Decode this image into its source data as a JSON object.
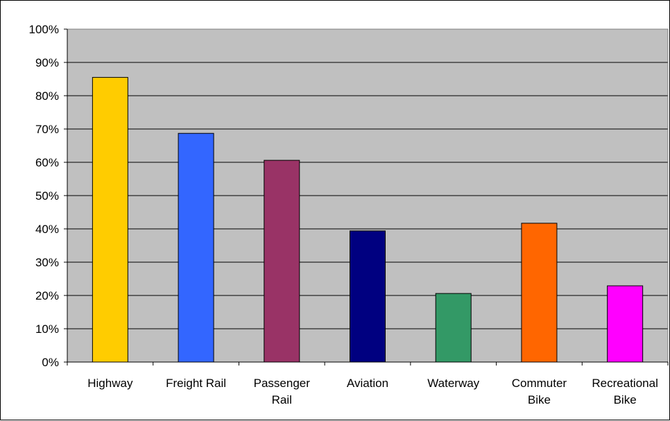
{
  "chart_data": {
    "type": "bar",
    "title": "",
    "xlabel": "",
    "ylabel": "",
    "categories": [
      "Highway",
      "Freight Rail",
      "Passenger Rail",
      "Aviation",
      "Waterway",
      "Commuter Bike",
      "Recreational Bike"
    ],
    "category_lines": [
      [
        "Highway"
      ],
      [
        "Freight Rail"
      ],
      [
        "Passenger",
        "Rail"
      ],
      [
        "Aviation"
      ],
      [
        "Waterway"
      ],
      [
        "Commuter",
        "Bike"
      ],
      [
        "Recreational",
        "Bike"
      ]
    ],
    "values": [
      85.5,
      68.7,
      60.6,
      39.4,
      20.6,
      41.7,
      22.9
    ],
    "colors": [
      "#FFCC00",
      "#3366FF",
      "#993366",
      "#000080",
      "#339966",
      "#FF6600",
      "#FF00FF"
    ],
    "ylim": [
      0,
      100
    ],
    "yticks": [
      0,
      10,
      20,
      30,
      40,
      50,
      60,
      70,
      80,
      90,
      100
    ],
    "ytick_labels": [
      "0%",
      "10%",
      "20%",
      "30%",
      "40%",
      "50%",
      "60%",
      "70%",
      "80%",
      "90%",
      "100%"
    ],
    "grid": true,
    "legend": "none",
    "plot_background": "#C0C0C0"
  }
}
